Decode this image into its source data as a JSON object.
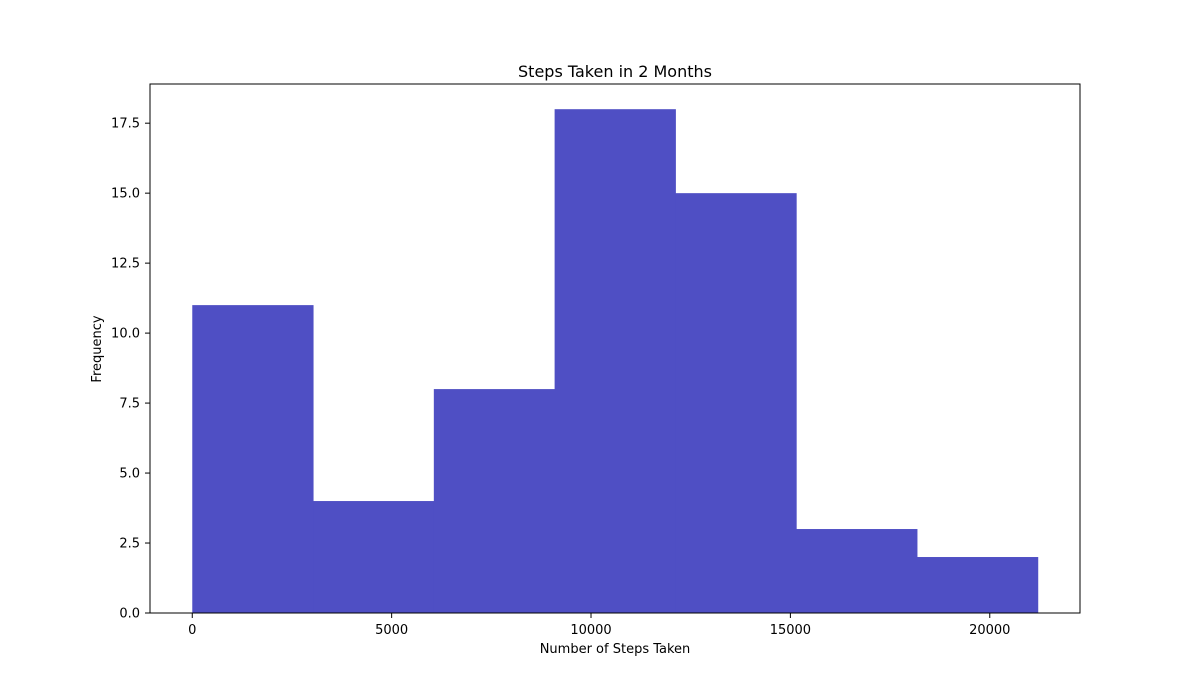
{
  "chart_data": {
    "type": "bar",
    "subtype": "histogram",
    "title": "Steps Taken in 2 Months",
    "xlabel": "Number of Steps Taken",
    "ylabel": "Frequency",
    "bins": [
      {
        "start": 0,
        "end": 3029,
        "value": 11
      },
      {
        "start": 3029,
        "end": 6058,
        "value": 4
      },
      {
        "start": 6058,
        "end": 9087,
        "value": 8
      },
      {
        "start": 9087,
        "end": 12116,
        "value": 18
      },
      {
        "start": 12116,
        "end": 15145,
        "value": 15
      },
      {
        "start": 15145,
        "end": 18174,
        "value": 3
      },
      {
        "start": 18174,
        "end": 21203,
        "value": 2
      }
    ],
    "xlim": [
      -1060,
      22263
    ],
    "ylim": [
      0,
      18.9
    ],
    "xticks": [
      0,
      5000,
      10000,
      15000,
      20000
    ],
    "xtick_labels": [
      "0",
      "5000",
      "10000",
      "15000",
      "20000"
    ],
    "yticks": [
      0,
      2.5,
      5,
      7.5,
      10,
      12.5,
      15,
      17.5
    ],
    "ytick_labels": [
      "0.0",
      "2.5",
      "5.0",
      "7.5",
      "10.0",
      "12.5",
      "15.0",
      "17.5"
    ],
    "bar_color": "#4f4fc4",
    "grid": false,
    "legend": "none"
  }
}
